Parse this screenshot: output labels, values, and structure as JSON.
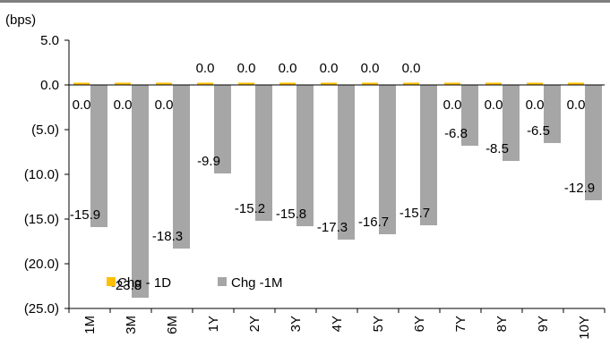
{
  "chart_data": {
    "type": "bar",
    "ylabel": "(bps)",
    "ylim": [
      -25,
      5
    ],
    "yticks": [
      5,
      0,
      -5,
      -10,
      -15,
      -20,
      -25
    ],
    "ytick_labels": [
      "5.0",
      "0.0",
      "(5.0)",
      "(10.0)",
      "(15.0)",
      "(20.0)",
      "(25.0)"
    ],
    "categories": [
      "1M",
      "3M",
      "6M",
      "1Y",
      "2Y",
      "3Y",
      "4Y",
      "5Y",
      "6Y",
      "7Y",
      "8Y",
      "9Y",
      "10Y"
    ],
    "series": [
      {
        "name": "Chg - 1D",
        "color": "#ffc000",
        "values": [
          0.0,
          0.0,
          0.0,
          0.0,
          0.0,
          0.0,
          0.0,
          0.0,
          0.0,
          0.0,
          0.0,
          0.0,
          0.0
        ],
        "labels": [
          "0.0",
          "0.0",
          "0.0",
          "0.0",
          "0.0",
          "0.0",
          "0.0",
          "0.0",
          "0.0",
          "0.0",
          "0.0",
          "0.0",
          "0.0"
        ]
      },
      {
        "name": "Chg -1M",
        "color": "#a6a6a6",
        "values": [
          -15.9,
          -23.8,
          -18.3,
          -9.9,
          -15.2,
          -15.8,
          -17.3,
          -16.7,
          -15.7,
          -6.8,
          -8.5,
          -6.5,
          -12.9
        ],
        "labels": [
          "-15.9",
          "-23.8",
          "-18.3",
          "-9.9",
          "-15.2",
          "-15.8",
          "-17.3",
          "-16.7",
          "-15.7",
          "-6.8",
          "-8.5",
          "-6.5",
          "-12.9"
        ]
      }
    ],
    "legend": "bottom-left",
    "grid": false
  }
}
